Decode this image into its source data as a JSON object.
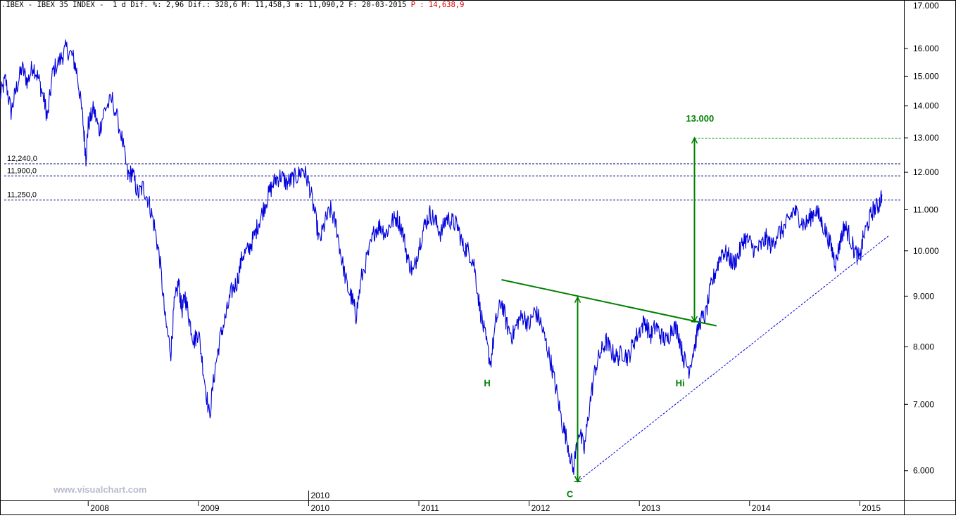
{
  "header": {
    "text": ".IBEX - IBEX 35 INDEX -  1 d Dif. %: 2,96 Dif.: 328,6 M: 11,458,3 m: 11,090,2 F: 20-03-2015 ",
    "p_text": "P : 14,638,9"
  },
  "watermark": "www.visualchart.com",
  "chart_data": {
    "type": "line",
    "title": "IBEX 35 INDEX",
    "scale": "log",
    "ylim": [
      5600,
      17500
    ],
    "xlim": [
      2007.2,
      2015.4
    ],
    "y_ticks": [
      6000,
      7000,
      8000,
      9000,
      10000,
      11000,
      12000,
      13000,
      14000,
      15000,
      16000
    ],
    "y_tick_labels": [
      "6.000",
      "7.000",
      "8.000",
      "9.000",
      "10.000",
      "11.000",
      "12.000",
      "13.000",
      "14.000",
      "15.000",
      "16.000"
    ],
    "x_ticks": [
      2008,
      2009,
      2010,
      2011,
      2012,
      2013,
      2014,
      2015
    ],
    "x_tick_labels": [
      "2008",
      "2009",
      "2010",
      "2011",
      "2012",
      "2013",
      "2014",
      "2015"
    ],
    "extra_x_label": {
      "x": 2010,
      "text": "2010"
    },
    "series": [
      {
        "color": "#0000dd",
        "points": [
          [
            2007.2,
            14300
          ],
          [
            2007.25,
            14900
          ],
          [
            2007.3,
            13800
          ],
          [
            2007.35,
            14600
          ],
          [
            2007.4,
            15300
          ],
          [
            2007.45,
            14800
          ],
          [
            2007.5,
            15400
          ],
          [
            2007.55,
            14900
          ],
          [
            2007.6,
            14200
          ],
          [
            2007.63,
            13600
          ],
          [
            2007.68,
            15200
          ],
          [
            2007.75,
            15600
          ],
          [
            2007.8,
            16000
          ],
          [
            2007.86,
            15700
          ],
          [
            2007.9,
            15100
          ],
          [
            2007.95,
            13600
          ],
          [
            2007.98,
            12400
          ],
          [
            2008.0,
            13400
          ],
          [
            2008.05,
            13900
          ],
          [
            2008.1,
            13200
          ],
          [
            2008.15,
            13900
          ],
          [
            2008.22,
            14200
          ],
          [
            2008.3,
            13100
          ],
          [
            2008.36,
            11900
          ],
          [
            2008.4,
            12000
          ],
          [
            2008.45,
            11400
          ],
          [
            2008.5,
            11600
          ],
          [
            2008.55,
            11200
          ],
          [
            2008.6,
            10600
          ],
          [
            2008.65,
            9800
          ],
          [
            2008.7,
            8500
          ],
          [
            2008.75,
            7900
          ],
          [
            2008.78,
            8800
          ],
          [
            2008.82,
            9300
          ],
          [
            2008.85,
            8700
          ],
          [
            2008.88,
            9000
          ],
          [
            2008.92,
            8500
          ],
          [
            2008.96,
            8100
          ],
          [
            2009.0,
            8300
          ],
          [
            2009.05,
            7500
          ],
          [
            2009.1,
            6800
          ],
          [
            2009.15,
            7600
          ],
          [
            2009.2,
            8200
          ],
          [
            2009.25,
            8600
          ],
          [
            2009.3,
            9100
          ],
          [
            2009.35,
            9300
          ],
          [
            2009.4,
            9900
          ],
          [
            2009.45,
            10000
          ],
          [
            2009.5,
            10300
          ],
          [
            2009.55,
            10700
          ],
          [
            2009.6,
            11100
          ],
          [
            2009.65,
            11500
          ],
          [
            2009.7,
            11800
          ],
          [
            2009.75,
            11900
          ],
          [
            2009.8,
            11700
          ],
          [
            2009.85,
            11800
          ],
          [
            2009.9,
            11900
          ],
          [
            2009.95,
            12100
          ],
          [
            2010.0,
            11700
          ],
          [
            2010.05,
            11000
          ],
          [
            2010.1,
            10200
          ],
          [
            2010.15,
            10700
          ],
          [
            2010.2,
            11000
          ],
          [
            2010.25,
            10600
          ],
          [
            2010.3,
            9800
          ],
          [
            2010.35,
            9200
          ],
          [
            2010.4,
            8900
          ],
          [
            2010.43,
            8600
          ],
          [
            2010.48,
            9400
          ],
          [
            2010.55,
            10000
          ],
          [
            2010.6,
            10500
          ],
          [
            2010.65,
            10600
          ],
          [
            2010.7,
            10400
          ],
          [
            2010.75,
            10700
          ],
          [
            2010.8,
            10800
          ],
          [
            2010.85,
            10500
          ],
          [
            2010.9,
            9800
          ],
          [
            2010.95,
            9500
          ],
          [
            2011.0,
            10100
          ],
          [
            2011.05,
            10600
          ],
          [
            2011.1,
            10900
          ],
          [
            2011.15,
            10700
          ],
          [
            2011.2,
            10400
          ],
          [
            2011.25,
            10800
          ],
          [
            2011.3,
            10700
          ],
          [
            2011.35,
            10600
          ],
          [
            2011.4,
            10100
          ],
          [
            2011.45,
            10000
          ],
          [
            2011.5,
            9700
          ],
          [
            2011.55,
            8800
          ],
          [
            2011.6,
            8200
          ],
          [
            2011.65,
            7700
          ],
          [
            2011.7,
            8500
          ],
          [
            2011.75,
            8900
          ],
          [
            2011.8,
            8400
          ],
          [
            2011.85,
            8200
          ],
          [
            2011.9,
            8500
          ],
          [
            2011.95,
            8600
          ],
          [
            2012.0,
            8400
          ],
          [
            2012.05,
            8700
          ],
          [
            2012.1,
            8500
          ],
          [
            2012.15,
            8100
          ],
          [
            2012.2,
            7700
          ],
          [
            2012.25,
            7200
          ],
          [
            2012.3,
            6700
          ],
          [
            2012.35,
            6400
          ],
          [
            2012.4,
            6000
          ],
          [
            2012.45,
            6600
          ],
          [
            2012.5,
            6300
          ],
          [
            2012.55,
            7000
          ],
          [
            2012.6,
            7600
          ],
          [
            2012.65,
            7900
          ],
          [
            2012.7,
            8100
          ],
          [
            2012.75,
            7900
          ],
          [
            2012.8,
            7800
          ],
          [
            2012.85,
            7900
          ],
          [
            2012.9,
            7800
          ],
          [
            2012.95,
            8100
          ],
          [
            2013.0,
            8300
          ],
          [
            2013.05,
            8500
          ],
          [
            2013.1,
            8200
          ],
          [
            2013.15,
            8400
          ],
          [
            2013.2,
            8200
          ],
          [
            2013.25,
            8100
          ],
          [
            2013.3,
            8400
          ],
          [
            2013.35,
            8300
          ],
          [
            2013.4,
            7800
          ],
          [
            2013.45,
            7600
          ],
          [
            2013.5,
            8000
          ],
          [
            2013.55,
            8500
          ],
          [
            2013.6,
            8600
          ],
          [
            2013.65,
            9200
          ],
          [
            2013.7,
            9600
          ],
          [
            2013.75,
            10000
          ],
          [
            2013.8,
            9900
          ],
          [
            2013.85,
            9700
          ],
          [
            2013.9,
            9900
          ],
          [
            2013.95,
            10300
          ],
          [
            2014.0,
            10200
          ],
          [
            2014.05,
            10000
          ],
          [
            2014.1,
            10100
          ],
          [
            2014.15,
            10300
          ],
          [
            2014.2,
            10100
          ],
          [
            2014.25,
            10400
          ],
          [
            2014.3,
            10500
          ],
          [
            2014.35,
            10700
          ],
          [
            2014.4,
            11000
          ],
          [
            2014.45,
            10800
          ],
          [
            2014.5,
            10600
          ],
          [
            2014.55,
            10800
          ],
          [
            2014.6,
            11000
          ],
          [
            2014.65,
            10700
          ],
          [
            2014.7,
            10400
          ],
          [
            2014.75,
            10000
          ],
          [
            2014.78,
            9700
          ],
          [
            2014.82,
            10200
          ],
          [
            2014.86,
            10600
          ],
          [
            2014.9,
            10400
          ],
          [
            2014.95,
            10000
          ],
          [
            2015.0,
            9800
          ],
          [
            2015.03,
            10300
          ],
          [
            2015.08,
            10700
          ],
          [
            2015.12,
            11000
          ],
          [
            2015.17,
            11100
          ],
          [
            2015.2,
            11400
          ]
        ]
      }
    ],
    "horizontal_levels": [
      {
        "value": 12240,
        "label": "12,240,0",
        "color": "#000080"
      },
      {
        "value": 11900,
        "label": "11,900,0",
        "color": "#000080"
      },
      {
        "value": 11250,
        "label": "11,250,0",
        "color": "#000080"
      },
      {
        "value": 12990,
        "label": "",
        "color": "#008000"
      }
    ],
    "annotations": [
      {
        "text": "H",
        "x": 2011.62,
        "y": 7300,
        "color": "#008000"
      },
      {
        "text": "Hi",
        "x": 2013.37,
        "y": 7300,
        "color": "#008000"
      },
      {
        "text": "C",
        "x": 2012.37,
        "y": 5640,
        "color": "#008000"
      },
      {
        "text": "13.000",
        "x": 2013.55,
        "y": 13500,
        "color": "#008000"
      }
    ],
    "neckline": {
      "from": [
        2011.75,
        9350
      ],
      "to": [
        2013.7,
        8400
      ],
      "color": "#008000"
    },
    "measure_arrows": [
      {
        "x": 2012.44,
        "from": 5850,
        "to": 8980,
        "color": "#008000"
      },
      {
        "x": 2013.5,
        "from": 8480,
        "to": 13000,
        "color": "#008000"
      }
    ],
    "trendline": {
      "from": [
        2012.44,
        5850
      ],
      "to": [
        2015.26,
        10350
      ],
      "color": "#0000dd"
    }
  }
}
